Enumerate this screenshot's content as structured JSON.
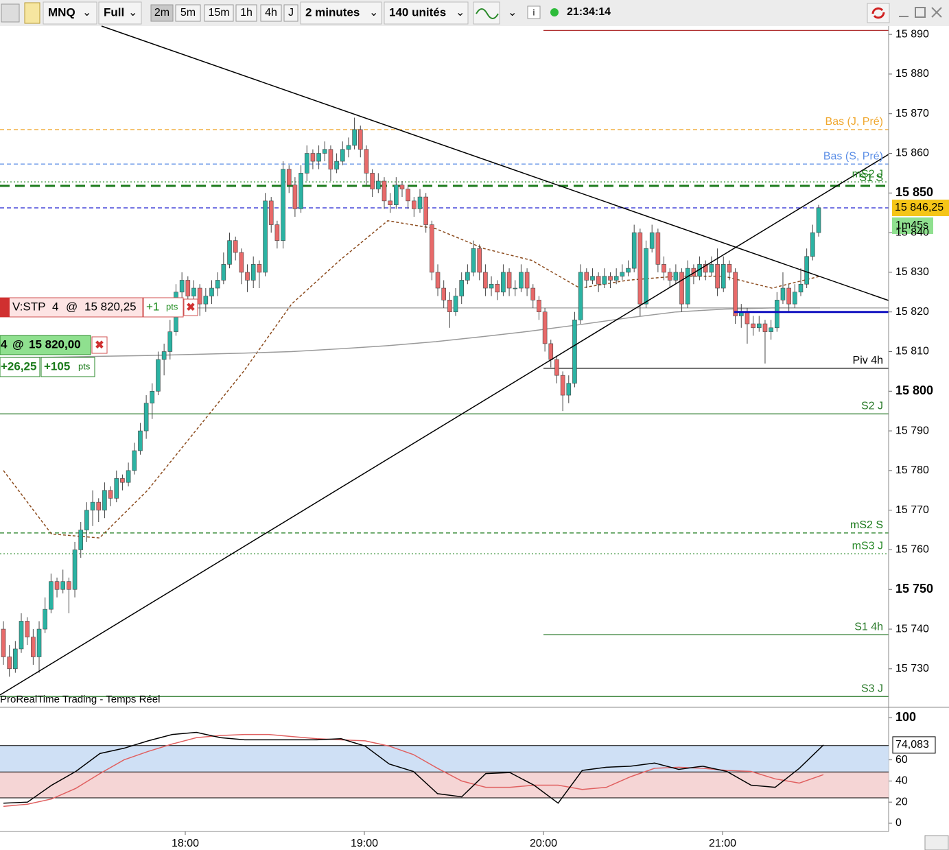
{
  "toolbar": {
    "symbol": "MNQ",
    "mode": "Full",
    "timeframes": [
      "2m",
      "5m",
      "15m",
      "1h",
      "4h",
      "J"
    ],
    "active_timeframe": "2m",
    "period": "2 minutes",
    "units": "140 unités",
    "clock": "21:34:14"
  },
  "chart_data": {
    "type": "candlestick",
    "up_color": "#2bb3a3",
    "down_color": "#e86a6a",
    "outline": "#444444",
    "ylim": [
      15720.8,
      15892.1
    ],
    "yticks": [
      {
        "value": 15890,
        "label": "15 890"
      },
      {
        "value": 15880,
        "label": "15 880"
      },
      {
        "value": 15870,
        "label": "15 870"
      },
      {
        "value": 15860,
        "label": "15 860"
      },
      {
        "value": 15850,
        "label": "15 850",
        "bold": true
      },
      {
        "value": 15840,
        "label": "15 840"
      },
      {
        "value": 15830,
        "label": "15 830"
      },
      {
        "value": 15820,
        "label": "15 820"
      },
      {
        "value": 15810,
        "label": "15 810"
      },
      {
        "value": 15800,
        "label": "15 800",
        "bold": true
      },
      {
        "value": 15790,
        "label": "15 790"
      },
      {
        "value": 15780,
        "label": "15 780"
      },
      {
        "value": 15770,
        "label": "15 770"
      },
      {
        "value": 15760,
        "label": "15 760"
      },
      {
        "value": 15750,
        "label": "15 750",
        "bold": true
      },
      {
        "value": 15740,
        "label": "15 740"
      },
      {
        "value": 15730,
        "label": "15 730"
      }
    ],
    "xticks": [
      "18:00",
      "19:00",
      "20:00",
      "21:00"
    ],
    "candles": [
      [
        15740,
        15742,
        15731,
        15733
      ],
      [
        15733,
        15736,
        15728,
        15730
      ],
      [
        15730,
        15737,
        15729,
        15735
      ],
      [
        15735,
        15744,
        15734,
        15742
      ],
      [
        15742,
        15743,
        15736,
        15738
      ],
      [
        15738,
        15740,
        15731,
        15733
      ],
      [
        15733,
        15742,
        15729,
        15740
      ],
      [
        15740,
        15748,
        15739,
        15745
      ],
      [
        15745,
        15754,
        15744,
        15752
      ],
      [
        15752,
        15753,
        15748,
        15750
      ],
      [
        15750,
        15755,
        15749,
        15752
      ],
      [
        15752,
        15753,
        15744,
        15750
      ],
      [
        15750,
        15762,
        15748,
        15760
      ],
      [
        15760,
        15767,
        15758,
        15765
      ],
      [
        15765,
        15772,
        15762,
        15770
      ],
      [
        15770,
        15775,
        15766,
        15772
      ],
      [
        15772,
        15773,
        15767,
        15770
      ],
      [
        15770,
        15777,
        15768,
        15775
      ],
      [
        15775,
        15776,
        15771,
        15773
      ],
      [
        15773,
        15780,
        15772,
        15778
      ],
      [
        15778,
        15779,
        15775,
        15777
      ],
      [
        15777,
        15782,
        15776,
        15780
      ],
      [
        15780,
        15787,
        15779,
        15785
      ],
      [
        15785,
        15792,
        15784,
        15790
      ],
      [
        15790,
        15799,
        15788,
        15797
      ],
      [
        15797,
        15802,
        15793,
        15800
      ],
      [
        15800,
        15810,
        15799,
        15808
      ],
      [
        15808,
        15812,
        15804,
        15810
      ],
      [
        15810,
        15818,
        15808,
        15815
      ],
      [
        15815,
        15827,
        15814,
        15825
      ],
      [
        15825,
        15830,
        15822,
        15828
      ],
      [
        15828,
        15829,
        15820,
        15824
      ],
      [
        15824,
        15828,
        15821,
        15826
      ],
      [
        15826,
        15827,
        15819,
        15822
      ],
      [
        15822,
        15826,
        15820,
        15824
      ],
      [
        15824,
        15828,
        15822,
        15826
      ],
      [
        15826,
        15830,
        15824,
        15828
      ],
      [
        15828,
        15835,
        15827,
        15832
      ],
      [
        15832,
        15840,
        15831,
        15838
      ],
      [
        15838,
        15839,
        15833,
        15835
      ],
      [
        15835,
        15836,
        15827,
        15830
      ],
      [
        15830,
        15832,
        15825,
        15828
      ],
      [
        15828,
        15834,
        15826,
        15832
      ],
      [
        15832,
        15833,
        15826,
        15830
      ],
      [
        15830,
        15850,
        15829,
        15848
      ],
      [
        15848,
        15849,
        15840,
        15842
      ],
      [
        15842,
        15843,
        15836,
        15838
      ],
      [
        15838,
        15858,
        15836,
        15856
      ],
      [
        15856,
        15857,
        15850,
        15852
      ],
      [
        15852,
        15854,
        15844,
        15846
      ],
      [
        15846,
        15857,
        15845,
        15855
      ],
      [
        15855,
        15862,
        15853,
        15860
      ],
      [
        15860,
        15861,
        15856,
        15858
      ],
      [
        15858,
        15862,
        15856,
        15860
      ],
      [
        15860,
        15863,
        15858,
        15861
      ],
      [
        15861,
        15862,
        15853,
        15856
      ],
      [
        15856,
        15860,
        15855,
        15858
      ],
      [
        15858,
        15863,
        15857,
        15861
      ],
      [
        15861,
        15864,
        15859,
        15862
      ],
      [
        15862,
        15869,
        15861,
        15866
      ],
      [
        15866,
        15867,
        15859,
        15861
      ],
      [
        15861,
        15862,
        15852,
        15855
      ],
      [
        15855,
        15856,
        15849,
        15851
      ],
      [
        15851,
        15855,
        15850,
        15853
      ],
      [
        15853,
        15854,
        15846,
        15848
      ],
      [
        15848,
        15850,
        15845,
        15847
      ],
      [
        15847,
        15854,
        15846,
        15852
      ],
      [
        15852,
        15853,
        15849,
        15851
      ],
      [
        15851,
        15852,
        15846,
        15848
      ],
      [
        15848,
        15849,
        15844,
        15846
      ],
      [
        15846,
        15851,
        15845,
        15849
      ],
      [
        15849,
        15850,
        15840,
        15842
      ],
      [
        15842,
        15843,
        15828,
        15830
      ],
      [
        15830,
        15832,
        15824,
        15826
      ],
      [
        15826,
        15828,
        15821,
        15823
      ],
      [
        15823,
        15825,
        15816,
        15820
      ],
      [
        15820,
        15826,
        15819,
        15824
      ],
      [
        15824,
        15830,
        15822,
        15828
      ],
      [
        15828,
        15832,
        15827,
        15830
      ],
      [
        15830,
        15838,
        15829,
        15836
      ],
      [
        15836,
        15837,
        15828,
        15830
      ],
      [
        15830,
        15832,
        15824,
        15826
      ],
      [
        15826,
        15829,
        15824,
        15827
      ],
      [
        15827,
        15828,
        15823,
        15825
      ],
      [
        15825,
        15832,
        15824,
        15830
      ],
      [
        15830,
        15831,
        15824,
        15826
      ],
      [
        15826,
        15828,
        15824,
        15826
      ],
      [
        15826,
        15832,
        15825,
        15830
      ],
      [
        15830,
        15831,
        15824,
        15826
      ],
      [
        15826,
        15827,
        15821,
        15823
      ],
      [
        15823,
        15824,
        15818,
        15820
      ],
      [
        15820,
        15821,
        15810,
        15812
      ],
      [
        15812,
        15813,
        15806,
        15808
      ],
      [
        15808,
        15809,
        15802,
        15804
      ],
      [
        15804,
        15805,
        15795,
        15799
      ],
      [
        15799,
        15804,
        15797,
        15802
      ],
      [
        15802,
        15820,
        15801,
        15818
      ],
      [
        15818,
        15832,
        15817,
        15830
      ],
      [
        15830,
        15831,
        15826,
        15828
      ],
      [
        15828,
        15831,
        15827,
        15829
      ],
      [
        15829,
        15830,
        15825,
        15827
      ],
      [
        15827,
        15831,
        15826,
        15829
      ],
      [
        15829,
        15830,
        15826,
        15828
      ],
      [
        15828,
        15831,
        15827,
        15829
      ],
      [
        15829,
        15832,
        15828,
        15830
      ],
      [
        15830,
        15833,
        15829,
        15831
      ],
      [
        15831,
        15842,
        15830,
        15840
      ],
      [
        15840,
        15841,
        15819,
        15822
      ],
      [
        15822,
        15838,
        15821,
        15836
      ],
      [
        15836,
        15842,
        15835,
        15840
      ],
      [
        15840,
        15841,
        15830,
        15832
      ],
      [
        15832,
        15834,
        15828,
        15830
      ],
      [
        15830,
        15831,
        15826,
        15828
      ],
      [
        15828,
        15832,
        15827,
        15830
      ],
      [
        15830,
        15831,
        15820,
        15822
      ],
      [
        15822,
        15833,
        15821,
        15831
      ],
      [
        15831,
        15832,
        15827,
        15829
      ],
      [
        15829,
        15834,
        15828,
        15832
      ],
      [
        15832,
        15833,
        15828,
        15830
      ],
      [
        15830,
        15834,
        15829,
        15832
      ],
      [
        15832,
        15836,
        15824,
        15826
      ],
      [
        15826,
        15834,
        15825,
        15832
      ],
      [
        15832,
        15833,
        15828,
        15830
      ],
      [
        15830,
        15831,
        15817,
        15819
      ],
      [
        15819,
        15822,
        15816,
        15820
      ],
      [
        15820,
        15821,
        15812,
        15817
      ],
      [
        15817,
        15819,
        15814,
        15816
      ],
      [
        15816,
        15819,
        15815,
        15817
      ],
      [
        15817,
        15818,
        15807,
        15815
      ],
      [
        15815,
        15818,
        15813,
        15816
      ],
      [
        15816,
        15825,
        15815,
        15823
      ],
      [
        15823,
        15830,
        15822,
        15826
      ],
      [
        15826,
        15827,
        15820,
        15822
      ],
      [
        15822,
        15827,
        15821,
        15825
      ],
      [
        15825,
        15831,
        15824,
        15827
      ],
      [
        15827,
        15836,
        15826,
        15834
      ],
      [
        15834,
        15842,
        15833,
        15840
      ],
      [
        15840,
        15847,
        15839,
        15846.25
      ]
    ],
    "moving_averages": [
      {
        "color": "#8b4a1c",
        "style": "dashed",
        "values": [
          15780,
          15764,
          15763,
          15775,
          15790,
          15805,
          15822,
          15833,
          15843,
          15841,
          15836,
          15833,
          15826,
          15828,
          15829,
          15829,
          15826,
          15829
        ]
      },
      {
        "color": "#999999",
        "style": "solid",
        "values": [
          15808.5,
          15808.6,
          15808.8,
          15809,
          15809.3,
          15809.6,
          15810,
          15810.7,
          15811.5,
          15812.5,
          15813.8,
          15815.2,
          15816.8,
          15818.5,
          15820,
          15820.7,
          15821,
          15821
        ]
      }
    ],
    "levels": [
      {
        "value": 15891,
        "color": "#b03030",
        "style": "solid",
        "partial": true
      },
      {
        "label": "Bas (J, Pré)",
        "value": 15866,
        "color": "#f0a830",
        "style": "dashed"
      },
      {
        "label": "Bas (S, Pré)",
        "value": 15857.3,
        "color": "#5b8ee6",
        "style": "dashed"
      },
      {
        "label": "mS2 J",
        "value": 15852.8,
        "color": "#2a8a2a",
        "style": "dotted"
      },
      {
        "label": "S1 S",
        "value": 15851.8,
        "color": "#1a7a1a",
        "style": "longdash"
      },
      {
        "value": 15846.25,
        "color": "#2020d0",
        "style": "dashed"
      },
      {
        "value": 15821,
        "color": "#999999",
        "style": "solid"
      },
      {
        "label": "Piv 4h",
        "value": 15805.8,
        "color": "#000000",
        "style": "solid",
        "partial": true
      },
      {
        "label": "S2 J",
        "value": 15794.3,
        "color": "#2a7a2a",
        "style": "solid"
      },
      {
        "label": "mS2 S",
        "value": 15764.25,
        "color": "#1a7a1a",
        "style": "dashed"
      },
      {
        "label": "mS3 J",
        "value": 15759,
        "color": "#2a8a2a",
        "style": "dotted"
      },
      {
        "label": "S1 4h",
        "value": 15738.6,
        "color": "#2a7a2a",
        "style": "solid",
        "partial": true
      },
      {
        "label": "S3 J",
        "value": 15723,
        "color": "#2a7a2a",
        "style": "solid"
      }
    ],
    "price_tag": {
      "value": 15846.25,
      "label": "15 846,25"
    },
    "timer": "1m45s",
    "orders": {
      "stop": {
        "label": "V:STP",
        "qty": "4",
        "at": "@",
        "price": "15 820,25",
        "pnl": "+1",
        "unit": "pts"
      },
      "position": {
        "qty": "4",
        "at": "@",
        "price": "15 820,00",
        "entry": 15820,
        "pnl_amount": "+26,25",
        "pnl_pts": "+105",
        "unit": "pts"
      }
    },
    "footer": "ProRealTime Trading - Temps Réel"
  },
  "oscillator": {
    "type": "line",
    "ylim": [
      -7.8,
      103.9
    ],
    "yticks": [
      {
        "value": 100,
        "label": "100",
        "bold": true
      },
      60,
      40,
      20,
      0
    ],
    "levels": [
      73.5,
      48.5,
      24
    ],
    "band_colors": [
      "#cfe0f5",
      "#f5d5d5"
    ],
    "series": [
      {
        "color": "#000000",
        "values": [
          19,
          20,
          36,
          49,
          66,
          71,
          78,
          84,
          86,
          81,
          79,
          79,
          79,
          79,
          80,
          73,
          56,
          49,
          28,
          25,
          47,
          48,
          36,
          19,
          50,
          53,
          54,
          57,
          51,
          54,
          49,
          36,
          34,
          52,
          74.083
        ]
      },
      {
        "color": "#e06060",
        "values": [
          16,
          18,
          23,
          33,
          47,
          60,
          68,
          75,
          81,
          83,
          84,
          84,
          82,
          80,
          79,
          78,
          73,
          65,
          52,
          40,
          34,
          34,
          36,
          36,
          32,
          34,
          44,
          52,
          53,
          52,
          50,
          49,
          42,
          38,
          46
        ]
      }
    ],
    "last_label": "74,083"
  }
}
